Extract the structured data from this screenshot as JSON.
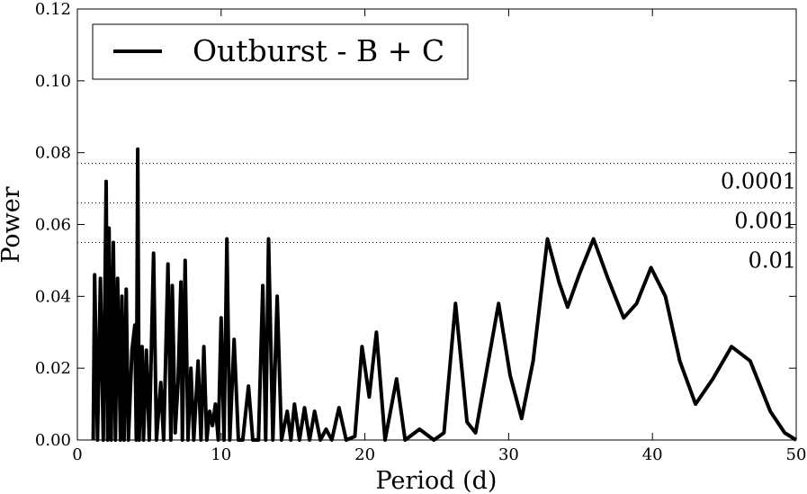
{
  "chart_data": {
    "type": "line",
    "xlabel": "Period (d)",
    "ylabel": "Power",
    "xlim": [
      0,
      50
    ],
    "ylim": [
      0,
      0.12
    ],
    "xticks": [
      0,
      10,
      20,
      30,
      40,
      50
    ],
    "yticks": [
      {
        "value": 0,
        "label": "0.00"
      },
      {
        "value": 0.02,
        "label": "0.02"
      },
      {
        "value": 0.04,
        "label": "0.04"
      },
      {
        "value": 0.06,
        "label": "0.06"
      },
      {
        "value": 0.08,
        "label": "0.08"
      },
      {
        "value": 0.1,
        "label": "0.10"
      },
      {
        "value": 0.12,
        "label": "0.12"
      }
    ],
    "legend": "upper left",
    "hlines": [
      {
        "value": 0.077,
        "label": "0.0001"
      },
      {
        "value": 0.066,
        "label": "0.001"
      },
      {
        "value": 0.055,
        "label": "0.01"
      }
    ],
    "series": [
      {
        "name": "Outburst - B + C",
        "color": "#000000",
        "x": [
          1.1,
          1.2,
          1.4,
          1.6,
          1.8,
          2.0,
          2.1,
          2.2,
          2.35,
          2.5,
          2.65,
          2.8,
          3.0,
          3.1,
          3.25,
          3.4,
          3.55,
          3.8,
          4.0,
          4.1,
          4.2,
          4.3,
          4.5,
          4.6,
          4.8,
          5.0,
          5.3,
          5.5,
          5.8,
          6.0,
          6.3,
          6.5,
          6.6,
          6.8,
          7.0,
          7.2,
          7.3,
          7.5,
          7.7,
          7.9,
          8.1,
          8.4,
          8.6,
          8.8,
          9.0,
          9.2,
          9.4,
          9.6,
          9.8,
          10.0,
          10.2,
          10.4,
          10.6,
          10.9,
          11.2,
          11.5,
          11.9,
          12.2,
          12.6,
          12.9,
          13.1,
          13.3,
          13.6,
          13.9,
          14.2,
          14.6,
          14.85,
          15.1,
          15.45,
          15.8,
          16.15,
          16.5,
          16.9,
          17.3,
          17.7,
          18.2,
          18.7,
          19.3,
          19.8,
          20.3,
          20.8,
          21.4,
          22.2,
          22.8,
          23.8,
          24.8,
          25.5,
          26.3,
          27.1,
          27.7,
          28.5,
          29.3,
          30.1,
          30.9,
          31.7,
          32.7,
          33.5,
          34.1,
          34.9,
          35.9,
          36.9,
          38.0,
          38.9,
          39.9,
          40.9,
          41.9,
          43.0,
          44.2,
          45.5,
          46.8,
          48.2,
          49.2,
          50.0
        ],
        "values": [
          0.0,
          0.046,
          0.0,
          0.045,
          0.0,
          0.072,
          0.0,
          0.059,
          0.0,
          0.055,
          0.0,
          0.045,
          0.0,
          0.04,
          0.0,
          0.042,
          0.0,
          0.025,
          0.032,
          0.0,
          0.081,
          0.0,
          0.026,
          0.0,
          0.025,
          0.0,
          0.052,
          0.0,
          0.016,
          0.0,
          0.049,
          0.0,
          0.043,
          0.002,
          0.016,
          0.044,
          0.0,
          0.05,
          0.0,
          0.02,
          0.0,
          0.022,
          0.0,
          0.026,
          0.0,
          0.008,
          0.004,
          0.01,
          0.0,
          0.034,
          0.0,
          0.056,
          0.0,
          0.028,
          0.0,
          0.0,
          0.015,
          0.0,
          0.0,
          0.043,
          0.0,
          0.056,
          0.0,
          0.04,
          0.0,
          0.008,
          0.0,
          0.01,
          0.0,
          0.009,
          0.0,
          0.008,
          0.0,
          0.003,
          0.0,
          0.009,
          0.0,
          0.001,
          0.026,
          0.012,
          0.03,
          0.0,
          0.017,
          0.0,
          0.003,
          0.0,
          0.002,
          0.038,
          0.005,
          0.002,
          0.02,
          0.038,
          0.018,
          0.006,
          0.022,
          0.056,
          0.044,
          0.037,
          0.046,
          0.056,
          0.045,
          0.034,
          0.038,
          0.048,
          0.04,
          0.022,
          0.01,
          0.017,
          0.026,
          0.022,
          0.008,
          0.002,
          0.0
        ]
      }
    ]
  }
}
